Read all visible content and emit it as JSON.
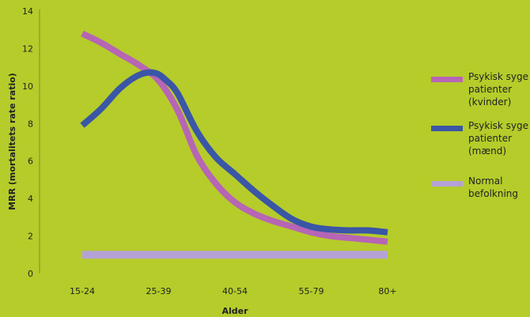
{
  "background": "#b5cc2a",
  "chart_data": {
    "type": "line",
    "categories": [
      "15-24",
      "25-39",
      "40-54",
      "55-79",
      "80+"
    ],
    "xlabel": "Alder",
    "ylabel": "MRR (mortalitets rate ratio)",
    "ylim": [
      0,
      14
    ],
    "yticks": [
      0,
      2,
      4,
      6,
      8,
      10,
      12,
      14
    ],
    "grid": false,
    "legend_position": "right",
    "series": [
      {
        "name_lines": [
          "Psykisk syge",
          "patienter",
          "(kvinder)"
        ],
        "color": "#b765b5",
        "x": [
          0,
          0.25,
          0.5,
          0.75,
          1,
          1.25,
          1.5,
          1.75,
          2,
          2.25,
          2.5,
          2.75,
          3,
          3.25,
          3.5,
          3.75,
          4
        ],
        "values": [
          12.8,
          12.3,
          11.7,
          11.1,
          10.3,
          8.7,
          6.3,
          4.8,
          3.8,
          3.2,
          2.8,
          2.5,
          2.2,
          2.0,
          1.9,
          1.8,
          1.7
        ]
      },
      {
        "name_lines": [
          "Psykisk syge",
          "patienter",
          "(mænd)"
        ],
        "color": "#3a56a6",
        "x": [
          0,
          0.25,
          0.5,
          0.75,
          0.95,
          1.1,
          1.25,
          1.5,
          1.75,
          2,
          2.25,
          2.5,
          2.75,
          3,
          3.25,
          3.5,
          3.75,
          4
        ],
        "values": [
          7.9,
          8.8,
          9.9,
          10.6,
          10.7,
          10.3,
          9.6,
          7.6,
          6.2,
          5.3,
          4.4,
          3.6,
          2.9,
          2.5,
          2.35,
          2.3,
          2.3,
          2.2
        ]
      },
      {
        "name_lines": [
          "Normal",
          "befolkning"
        ],
        "color": "#b4a2d6",
        "x": [
          0,
          4
        ],
        "values": [
          1,
          1
        ]
      }
    ]
  }
}
